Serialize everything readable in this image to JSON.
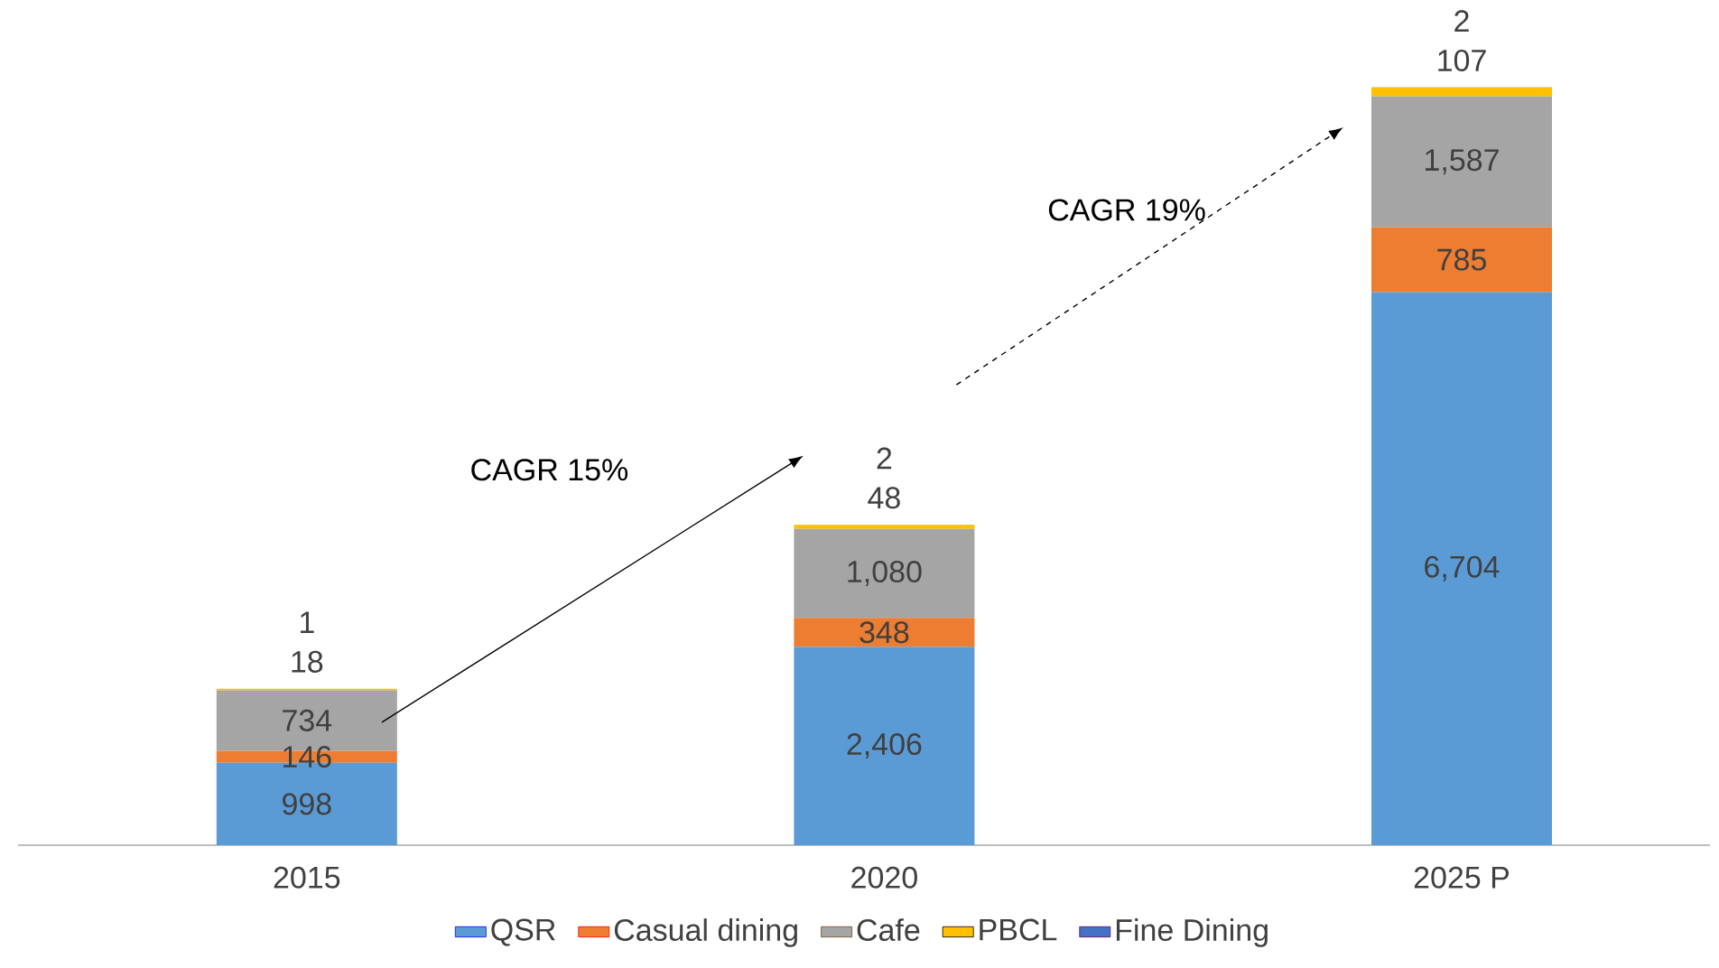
{
  "chart_data": {
    "type": "bar",
    "stacked": true,
    "categories": [
      "2015",
      "2020",
      "2025 P"
    ],
    "legend": "bottom",
    "series": [
      {
        "name": "QSR",
        "color": "#5b9bd5",
        "values": [
          998,
          2406,
          6704
        ],
        "value_labels": [
          "998",
          "2,406",
          "6,704"
        ]
      },
      {
        "name": "Casual dining",
        "color": "#ed7d31",
        "values": [
          146,
          348,
          785
        ],
        "value_labels": [
          "146",
          "348",
          "785"
        ]
      },
      {
        "name": "Cafe",
        "color": "#a5a5a5",
        "values": [
          734,
          1080,
          1587
        ],
        "value_labels": [
          "734",
          "1,080",
          "1,587"
        ]
      },
      {
        "name": "PBCL",
        "color": "#ffc000",
        "values": [
          18,
          48,
          107
        ],
        "value_labels": [
          "18",
          "48",
          "107"
        ]
      },
      {
        "name": "Fine Dining",
        "color": "#4472c4",
        "values": [
          1,
          2,
          2
        ],
        "value_labels": [
          "1",
          "2",
          "2"
        ]
      }
    ],
    "annotations": [
      "CAGR 15%",
      "CAGR 19%"
    ]
  }
}
